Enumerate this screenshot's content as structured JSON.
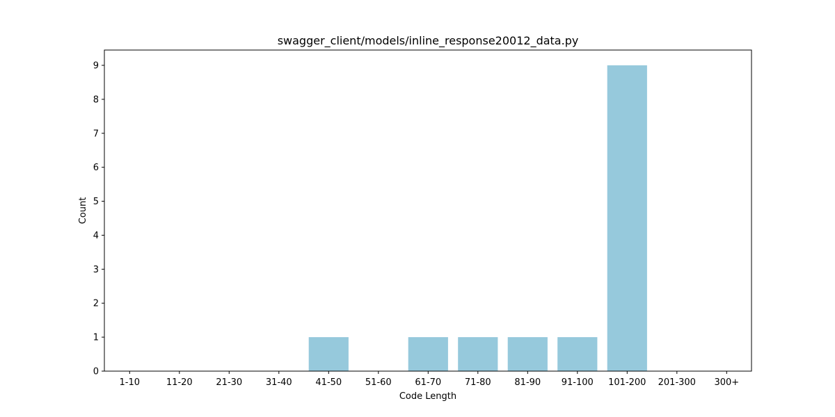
{
  "chart_data": {
    "type": "bar",
    "title": "swagger_client/models/inline_response20012_data.py",
    "xlabel": "Code Length",
    "ylabel": "Count",
    "categories": [
      "1-10",
      "11-20",
      "21-30",
      "31-40",
      "41-50",
      "51-60",
      "61-70",
      "71-80",
      "81-90",
      "91-100",
      "101-200",
      "201-300",
      "300+"
    ],
    "values": [
      0,
      0,
      0,
      0,
      1,
      0,
      1,
      1,
      1,
      1,
      9,
      0,
      0
    ],
    "ylim": [
      0,
      9.45
    ],
    "yticks": [
      0,
      1,
      2,
      3,
      4,
      5,
      6,
      7,
      8,
      9
    ],
    "grid": false,
    "bar_color": "#96c9dc"
  }
}
